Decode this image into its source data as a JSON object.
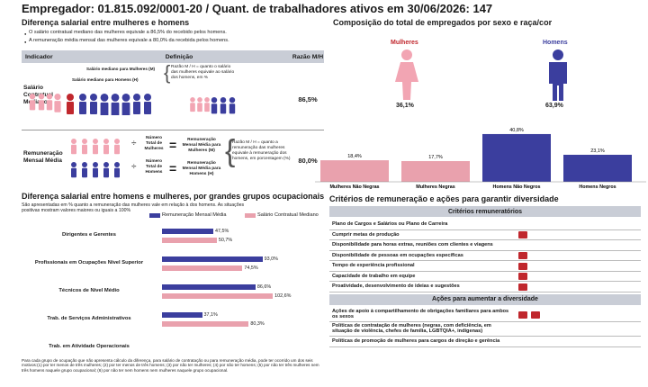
{
  "header": {
    "title": "Empregador: 01.815.092/0001-20 / Quant. de trabalhadores ativos em 30/06/2026: 147"
  },
  "wage_gap": {
    "title": "Diferença salarial entre mulheres e homens",
    "bullets": [
      "O salário contratual mediano das mulheres equivale a 86,5% do recebido pelos homens.",
      "A remuneração média mensal das mulheres equivale a 80,0% da recebida pelos homens."
    ],
    "columns": [
      "Indicador",
      "Definição",
      "Razão M/H"
    ],
    "rows": [
      {
        "indicator": [
          "Salário",
          "Contratual",
          "Mediano"
        ],
        "ratio": "86,5%",
        "box1": "Salário mediano para Mulheres (M)",
        "box2": "Salário mediano para Homens (H)",
        "note": "Razão M / H = quanto o salário das mulheres equivale ao salário dos homens, em %"
      },
      {
        "indicator": [
          "Remuneração",
          "Mensal Média"
        ],
        "ratio": "80,0%",
        "top_frac": "Número Total de Mulheres",
        "top_res": "Remuneração Mensal Média para Mulheres (M)",
        "bot_frac": "Número Total de Homens",
        "bot_res": "Remuneração Mensal Média para Homens (H)",
        "note": "Razão M / H = quanto a remuneração das mulheres equivale à remuneração dos homens, em porcentagem (%)"
      }
    ]
  },
  "composition": {
    "title": "Composição do total de empregados por sexo e raça/cor",
    "women_label": "Mulheres",
    "women_pct": "36,1%",
    "men_label": "Homens",
    "men_pct": "63,9%",
    "colors": {
      "women": "#f2a5b3",
      "men": "#3b3e9e"
    }
  },
  "chart_data": [
    {
      "type": "bar",
      "categories": [
        "Mulheres Não Negras",
        "Mulheres Negras",
        "Homens Não Negros",
        "Homens Negros"
      ],
      "values": [
        18.4,
        17.7,
        40.8,
        23.1
      ],
      "labels": [
        "18,4%",
        "17,7%",
        "40,8%",
        "23,1%"
      ],
      "colors": [
        "#e9a1ad",
        "#e9a1ad",
        "#3b3e9e",
        "#3b3e9e"
      ]
    },
    {
      "type": "bar",
      "orientation": "horizontal",
      "title": "Diferença salarial entre homens e mulheres, por grandes grupos ocupacionais",
      "subtitle": "São apresentadas em % quanto a remuneração das mulheres vale em relação à dos homens. As situações positivas mostram valores maiores ou iguais a 100%",
      "categories": [
        "Dirigentes e Gerentes",
        "Profissionais em Ocupações Nível Superior",
        "Técnicos de Nível Médio",
        "Trab. de Serviços Administrativos",
        "Trab. em Atividade Operacionais"
      ],
      "series": [
        {
          "name": "Remuneração Mensal Média",
          "color": "#3b3e9e",
          "values": [
            47.5,
            93.0,
            86.6,
            37.1,
            null
          ],
          "labels": [
            "47,5%",
            "93,0%",
            "86,6%",
            "37,1%",
            ""
          ]
        },
        {
          "name": "Salário Contratual Mediano",
          "color": "#e9a1ad",
          "values": [
            50.7,
            74.5,
            102.6,
            80.3,
            null
          ],
          "labels": [
            "50,7%",
            "74,5%",
            "102,6%",
            "80,3%",
            ""
          ]
        }
      ],
      "footnote": "Para cada grupo de ocupação que não apresenta cálculo da diferença, para salário de contratação ou para remuneração média, pode ter ocorrido um dos seis motivos:(1) por ter menos de três mulheres; (2) por ter menos de três homens; (3) por não ter mulheres; (4) por não ter homens; (5) por não ter três mulheres nem três homens naquele grupo ocupacional; (6) por não ter nem homens nem mulheres naquele grupo ocupacional."
    }
  ],
  "criteria": {
    "title": "Critérios de remuneração e ações para garantir diversidade",
    "head1": "Critérios remuneratórios",
    "items1": [
      {
        "label": "Plano de Cargos e Salários ou Plano de Carreira",
        "marks": 0
      },
      {
        "label": "Cumprir metas de produção",
        "marks": 1
      },
      {
        "label": "Disponibilidade para horas extras, reuniões com clientes e viagens",
        "marks": 0
      },
      {
        "label": "Disponibilidade de pessoas em ocupações específicas",
        "marks": 1
      },
      {
        "label": "Tempo de experiência profissional",
        "marks": 1
      },
      {
        "label": "Capacidade de trabalho em equipe",
        "marks": 1
      },
      {
        "label": "Proatividade, desenvolvimento de ideias e sugestões",
        "marks": 1
      }
    ],
    "head2": "Ações para aumentar a diversidade",
    "items2": [
      {
        "label": "Ações de apoio à compartilhamento de obrigações familiares para ambos os sexos",
        "marks": 2
      },
      {
        "label": "Políticas de contratação de mulheres (negras, com deficiência, em situação de violência, chefes de família, LGBTQIA+, indígenas)",
        "marks": 0
      },
      {
        "label": "Políticas de promoção de mulheres para cargos de direção e gerência",
        "marks": 0
      }
    ],
    "mark_color": "#c0272d"
  }
}
